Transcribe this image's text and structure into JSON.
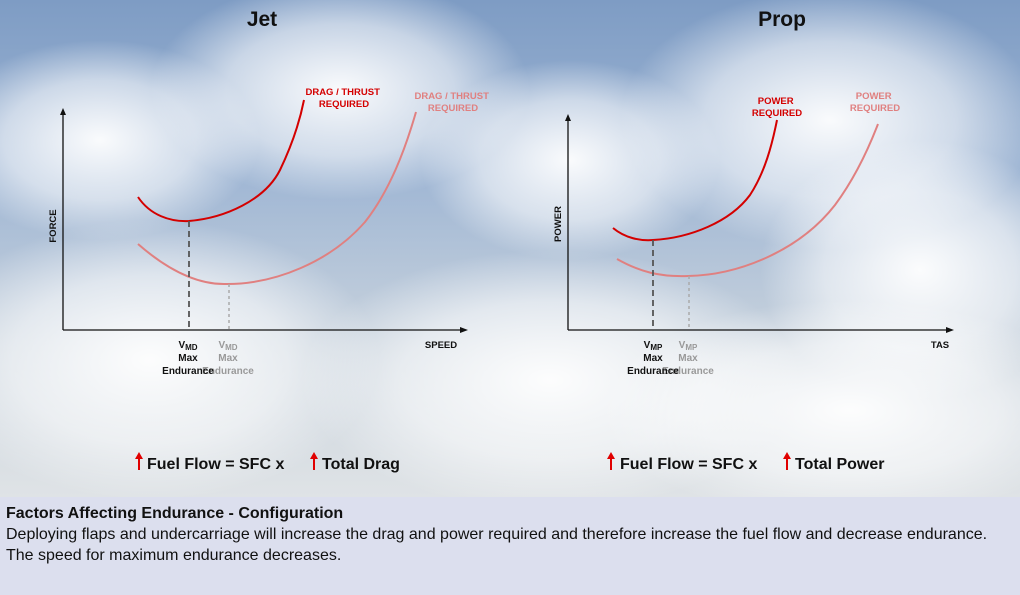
{
  "jet": {
    "title": "Jet",
    "y_axis": "FORCE",
    "x_axis": "SPEED",
    "curve_dark": [
      "DRAG / THRUST",
      "REQUIRED"
    ],
    "curve_light": [
      "DRAG / THRUST",
      "REQUIRED"
    ],
    "marker_dark": {
      "v": "V",
      "sub": "MD",
      "l1": "Max",
      "l2": "Endurance"
    },
    "marker_light": {
      "v": "V",
      "sub": "MD",
      "l1": "Max",
      "l2": "Endurance"
    },
    "formula": {
      "left": "Fuel Flow = SFC x ",
      "right": "Total Drag"
    }
  },
  "prop": {
    "title": "Prop",
    "y_axis": "POWER",
    "x_axis": "TAS",
    "curve_dark": [
      "POWER",
      "REQUIRED"
    ],
    "curve_light": [
      "POWER",
      "REQUIRED"
    ],
    "marker_dark": {
      "v": "V",
      "sub": "MP",
      "l1": "Max",
      "l2": "Endurance"
    },
    "marker_light": {
      "v": "V",
      "sub": "MP",
      "l1": "Max",
      "l2": "Endurance"
    },
    "formula": {
      "left": "Fuel Flow = SFC x ",
      "right": "Total Power"
    }
  },
  "caption": {
    "title": "Factors Affecting Endurance - Configuration",
    "line1": "Deploying flaps and undercarriage will increase the drag and power required and therefore increase the fuel flow and decrease endurance.",
    "line2": "The speed for maximum endurance decreases."
  },
  "colors": {
    "dark_curve": "#d40000",
    "light_curve": "#e08080",
    "arrow": "#e00000"
  }
}
